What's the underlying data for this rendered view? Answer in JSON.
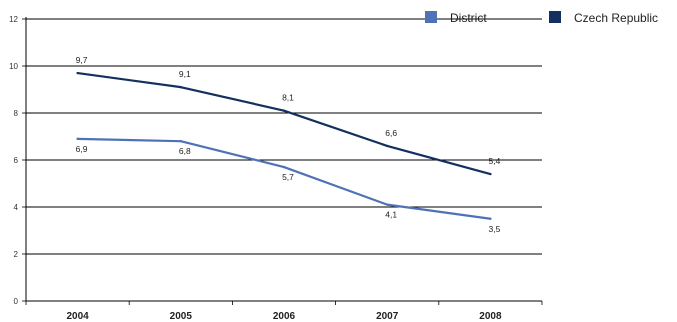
{
  "chart_data": {
    "type": "line",
    "categories": [
      "2004",
      "2005",
      "2006",
      "2007",
      "2008"
    ],
    "series": [
      {
        "name": "District",
        "values": [
          6.9,
          6.8,
          5.7,
          4.1,
          3.5
        ],
        "labels": [
          "6,9",
          "6,8",
          "5,7",
          "4,1",
          "3,5"
        ],
        "color": "#4f72b6"
      },
      {
        "name": "Czech Republic",
        "values": [
          9.7,
          9.1,
          8.1,
          6.6,
          5.4
        ],
        "labels": [
          "9,7",
          "9,1",
          "8,1",
          "6,6",
          "5,4"
        ],
        "color": "#13305e"
      }
    ],
    "yticks": [
      "0",
      "2",
      "4",
      "6",
      "8",
      "10",
      "12"
    ],
    "ylim": [
      0,
      12
    ],
    "grid": true,
    "legend_position": "top-right"
  }
}
